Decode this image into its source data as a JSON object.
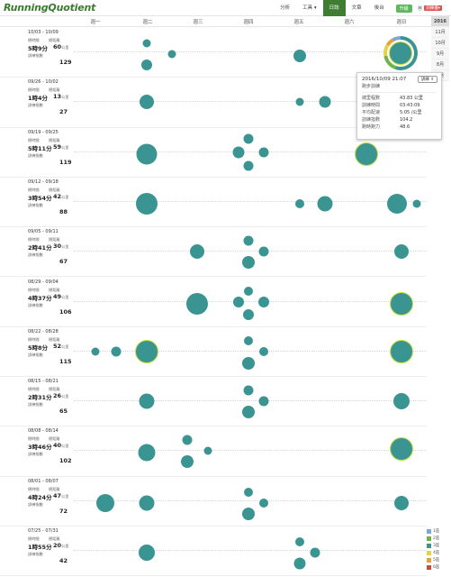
{
  "app": {
    "logo": "RunningQuotient"
  },
  "nav": {
    "items": [
      "分析",
      "工具",
      "日誌",
      "文章",
      "後台"
    ],
    "tools_caret": "▾",
    "active": "日誌",
    "upgrade": "升級",
    "user": "Ⓜ",
    "user_badge": "訓練優▾"
  },
  "days": [
    "週一",
    "週二",
    "週三",
    "週四",
    "週五",
    "週六",
    "週日"
  ],
  "years": [
    "2016",
    "11月",
    "10月",
    "9月",
    "8月",
    "7月"
  ],
  "labels": {
    "time": "總時間",
    "dist": "總距離",
    "train": "訓練指數"
  },
  "weeks": [
    {
      "range": "10/03 - 10/09",
      "time": "5時9分",
      "dist": "60",
      "unit": "公里",
      "train": "129"
    },
    {
      "range": "09/26 - 10/02",
      "time": "1時4分",
      "dist": "13",
      "unit": "公里",
      "train": "27"
    },
    {
      "range": "09/19 - 09/25",
      "time": "5時11分",
      "dist": "59",
      "unit": "公里",
      "train": "119"
    },
    {
      "range": "09/12 - 09/18",
      "time": "3時54分",
      "dist": "42",
      "unit": "公里",
      "train": "88"
    },
    {
      "range": "09/05 - 09/11",
      "time": "2時41分",
      "dist": "30",
      "unit": "公里",
      "train": "67"
    },
    {
      "range": "08/29 - 09/04",
      "time": "4時37分",
      "dist": "49",
      "unit": "公里",
      "train": "106"
    },
    {
      "range": "08/22 - 08/28",
      "time": "5時8分",
      "dist": "52",
      "unit": "公里",
      "train": "115"
    },
    {
      "range": "08/15 - 08/21",
      "time": "2時31分",
      "dist": "26",
      "unit": "公里",
      "train": "65"
    },
    {
      "range": "08/08 - 08/14",
      "time": "3時46分",
      "dist": "40",
      "unit": "公里",
      "train": "102"
    },
    {
      "range": "08/01 - 08/07",
      "time": "4時24分",
      "dist": "47",
      "unit": "公里",
      "train": "72"
    },
    {
      "range": "07/25 - 07/31",
      "time": "1時55分",
      "dist": "20",
      "unit": "公里",
      "train": "42"
    }
  ],
  "runs": [
    [
      {
        "d": 1,
        "s": 9,
        "o": -10
      },
      {
        "d": 1,
        "s": 12,
        "o": 14
      },
      {
        "d": 1.5,
        "s": 9,
        "o": 2
      },
      {
        "d": 4,
        "s": 14,
        "o": 4
      },
      {
        "d": 6,
        "s": 26,
        "o": 4,
        "hl": true
      }
    ],
    [
      {
        "d": 1,
        "s": 16,
        "o": 0
      },
      {
        "d": 4,
        "s": 9,
        "o": 0
      },
      {
        "d": 4.5,
        "s": 13,
        "o": 0
      },
      {
        "d": 6,
        "s": 16,
        "o": 0
      }
    ],
    [
      {
        "d": 1,
        "s": 23,
        "o": 2
      },
      {
        "d": 3,
        "s": 11,
        "o": -15
      },
      {
        "d": 2.8,
        "s": 13,
        "o": 0
      },
      {
        "d": 3.3,
        "s": 11,
        "o": 0
      },
      {
        "d": 3,
        "s": 11,
        "o": 15
      },
      {
        "d": 5.3,
        "s": 26,
        "o": 2,
        "hl": true
      }
    ],
    [
      {
        "d": 1,
        "s": 24,
        "o": 2
      },
      {
        "d": 4,
        "s": 10,
        "o": 2
      },
      {
        "d": 4.5,
        "s": 17,
        "o": 2
      },
      {
        "d": 5.9,
        "s": 22,
        "o": 2
      },
      {
        "d": 6.3,
        "s": 9,
        "o": 2
      }
    ],
    [
      {
        "d": 2,
        "s": 16,
        "o": 0
      },
      {
        "d": 3,
        "s": 11,
        "o": -12
      },
      {
        "d": 3.3,
        "s": 11,
        "o": 0
      },
      {
        "d": 3,
        "s": 14,
        "o": 12
      },
      {
        "d": 6,
        "s": 16,
        "o": 0
      }
    ],
    [
      {
        "d": 2,
        "s": 24,
        "o": 2
      },
      {
        "d": 3,
        "s": 10,
        "o": -12
      },
      {
        "d": 2.8,
        "s": 12,
        "o": 0
      },
      {
        "d": 3.3,
        "s": 12,
        "o": 0
      },
      {
        "d": 3,
        "s": 12,
        "o": 14
      },
      {
        "d": 6,
        "s": 26,
        "o": 2,
        "hl": true
      }
    ],
    [
      {
        "d": 0,
        "s": 9,
        "o": 0
      },
      {
        "d": 0.4,
        "s": 11,
        "o": 0
      },
      {
        "d": 1,
        "s": 26,
        "o": 0,
        "hl": true
      },
      {
        "d": 3,
        "s": 10,
        "o": -12
      },
      {
        "d": 3.3,
        "s": 10,
        "o": 0
      },
      {
        "d": 3,
        "s": 14,
        "o": 13
      },
      {
        "d": 6,
        "s": 26,
        "o": 0,
        "hl": true
      }
    ],
    [
      {
        "d": 1,
        "s": 17,
        "o": 0
      },
      {
        "d": 3,
        "s": 11,
        "o": -12
      },
      {
        "d": 3.3,
        "s": 11,
        "o": 0
      },
      {
        "d": 3,
        "s": 14,
        "o": 12
      },
      {
        "d": 6,
        "s": 18,
        "o": 0
      }
    ],
    [
      {
        "d": 1.8,
        "s": 11,
        "o": -12
      },
      {
        "d": 2.2,
        "s": 9,
        "o": 0
      },
      {
        "d": 1.8,
        "s": 14,
        "o": 12
      },
      {
        "d": 1,
        "s": 19,
        "o": 2
      },
      {
        "d": 6,
        "s": 26,
        "o": -2,
        "hl": true
      }
    ],
    [
      {
        "d": 0.2,
        "s": 20,
        "o": 2
      },
      {
        "d": 1,
        "s": 17,
        "o": 2
      },
      {
        "d": 3,
        "s": 10,
        "o": -10
      },
      {
        "d": 3.3,
        "s": 10,
        "o": 2
      },
      {
        "d": 3,
        "s": 14,
        "o": 14
      },
      {
        "d": 6,
        "s": 16,
        "o": 2
      }
    ],
    [
      {
        "d": 1,
        "s": 18,
        "o": 2
      },
      {
        "d": 4,
        "s": 10,
        "o": -10
      },
      {
        "d": 4.3,
        "s": 11,
        "o": 2
      },
      {
        "d": 4,
        "s": 13,
        "o": 14
      }
    ]
  ],
  "popup": {
    "datetime": "2016/10/09 21:07",
    "type": "跑步訓練",
    "select": "訓練 ⇕",
    "rows": [
      {
        "k": "總里程數",
        "v": "43.83 公里"
      },
      {
        "k": "訓練時間",
        "v": "03:43:09"
      },
      {
        "k": "平均配速",
        "v": "5:05 /公里"
      },
      {
        "k": "訓練指數",
        "v": "104.2"
      },
      {
        "k": "跑時跑力",
        "v": "48.6"
      }
    ]
  },
  "legend": [
    {
      "label": "1區",
      "color": "#7fa6d8"
    },
    {
      "label": "2區",
      "color": "#6fb34a"
    },
    {
      "label": "3區",
      "color": "#3a9592"
    },
    {
      "label": "4區",
      "color": "#e3d34a"
    },
    {
      "label": "5區",
      "color": "#e6a13a"
    },
    {
      "label": "6區",
      "color": "#c94a3a"
    }
  ]
}
